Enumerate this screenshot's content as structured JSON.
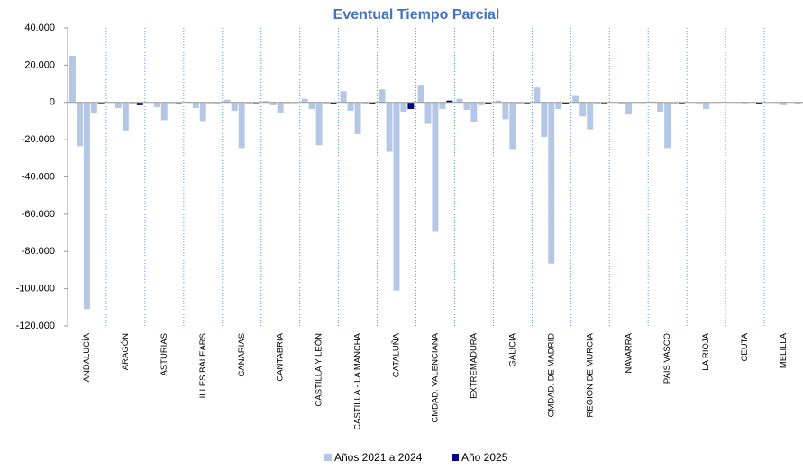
{
  "chart_data": {
    "type": "bar",
    "title": "Eventual Tiempo Parcial",
    "categories": [
      "ANDALUCÍA",
      "ARAGÓN",
      "ASTURIAS",
      "ILLES BALEARS",
      "CANARIAS",
      "CANTABRIA",
      "CASTILLA Y LEÓN",
      "CASTILLA - LA MANCHA",
      "CATALUÑA",
      "CMDAD. VALENCIANA",
      "EXTREMADURA",
      "GALICIA",
      "CMDAD. DE MADRID",
      "REGIÓN DE MURCIA",
      "NAVARRA",
      "PAIS VASCO",
      "LA RIOJA",
      "CEUTA",
      "MELILLA"
    ],
    "series": [
      {
        "name": "Años 2021 a 2024",
        "color": "#b4c7e7",
        "values": [
          [
            25000,
            -23500,
            -111000,
            -5500
          ],
          [
            300,
            -3000,
            -15000,
            -1000
          ],
          [
            200,
            -2500,
            -9500,
            -500
          ],
          [
            300,
            -3000,
            -10000,
            -500
          ],
          [
            1500,
            -4500,
            -24500,
            -800
          ],
          [
            800,
            -1500,
            -5500,
            -500
          ],
          [
            2000,
            -3500,
            -23000,
            -600
          ],
          [
            6000,
            -4500,
            -17000,
            -900
          ],
          [
            7000,
            -26500,
            -101000,
            -5000
          ],
          [
            9500,
            -11500,
            -69500,
            -3500
          ],
          [
            2000,
            -4000,
            -10500,
            -1500
          ],
          [
            1000,
            -9000,
            -25500,
            -1000
          ],
          [
            8000,
            -18500,
            -86500,
            -3500
          ],
          [
            3500,
            -7500,
            -14500,
            -1000
          ],
          [
            200,
            -1000,
            -6500,
            -300
          ],
          [
            500,
            -5000,
            -24500,
            -1000
          ],
          [
            100,
            -500,
            -3500,
            -200
          ],
          [
            50,
            -200,
            -500,
            -100
          ],
          [
            100,
            -300,
            -1500,
            -100
          ]
        ]
      },
      {
        "name": "Año 2025",
        "color": "#00008b",
        "values": [
          -500,
          -1500,
          -400,
          -300,
          -400,
          -200,
          -800,
          -1000,
          -3500,
          1000,
          -1000,
          -500,
          -1000,
          -500,
          -200,
          -500,
          -100,
          -800,
          -300
        ]
      }
    ],
    "ylim": [
      -120000,
      40000
    ],
    "yticks": [
      {
        "value": 40000,
        "label": "40.000"
      },
      {
        "value": 20000,
        "label": "20.000"
      },
      0,
      {
        "value": -20000,
        "label": "-20.000"
      },
      {
        "value": -40000,
        "label": "-40.000"
      },
      {
        "value": -60000,
        "label": "-60.000"
      },
      {
        "value": -80000,
        "label": "-80.000"
      },
      {
        "value": -100000,
        "label": "-100.000"
      },
      {
        "value": -120000,
        "label": "-120.000"
      }
    ]
  }
}
